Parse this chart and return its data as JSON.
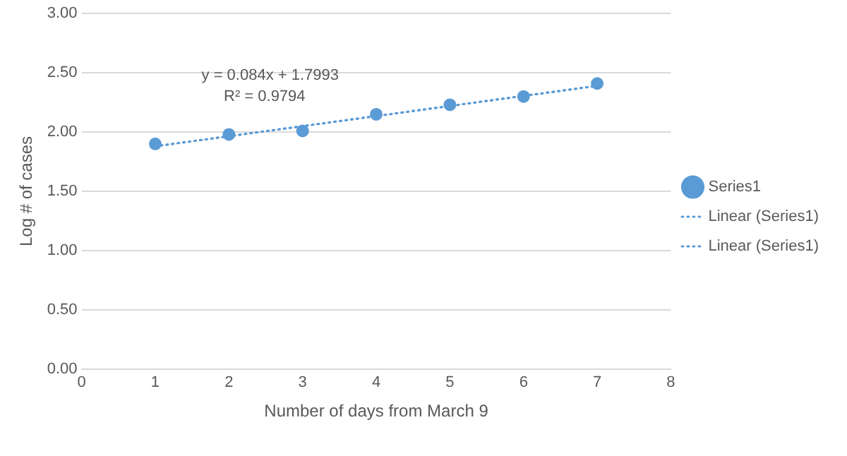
{
  "chart_data": {
    "type": "scatter",
    "xlabel": "Number of days from March 9",
    "ylabel": "Log # of cases",
    "xlim": [
      0,
      8
    ],
    "xticks": [
      0,
      1,
      2,
      3,
      4,
      5,
      6,
      7,
      8
    ],
    "ylim": [
      0,
      3
    ],
    "yticks": [
      {
        "value": 0,
        "label": "0.00"
      },
      {
        "value": 0.5,
        "label": "0.50"
      },
      {
        "value": 1,
        "label": "1.00"
      },
      {
        "value": 1.5,
        "label": "1.50"
      },
      {
        "value": 2,
        "label": "2.00"
      },
      {
        "value": 2.5,
        "label": "2.50"
      },
      {
        "value": 3,
        "label": "3.00"
      }
    ],
    "grid": "y",
    "legend": "right",
    "annotations": [
      "y = 0.084x + 1.7993",
      "R² = 0.9794"
    ],
    "series": [
      {
        "name": "Series1",
        "type": "scatter",
        "color": "#5b9bd5",
        "marker": "circle",
        "x": [
          1,
          2,
          3,
          4,
          5,
          6,
          7
        ],
        "values": [
          1.9,
          1.98,
          2.01,
          2.15,
          2.23,
          2.3,
          2.41
        ]
      },
      {
        "name": "Linear (Series1)",
        "type": "line",
        "color": "#5b9bd5",
        "marker": "none",
        "line_style": "dotted",
        "x": [
          1,
          7
        ],
        "values": [
          1.88,
          2.39
        ]
      },
      {
        "name": "Linear (Series1)",
        "type": "line",
        "color": "#5b9bd5",
        "marker": "none",
        "line_style": "dotted",
        "x": [
          1,
          7
        ],
        "values": [
          1.88,
          2.39
        ]
      }
    ]
  }
}
